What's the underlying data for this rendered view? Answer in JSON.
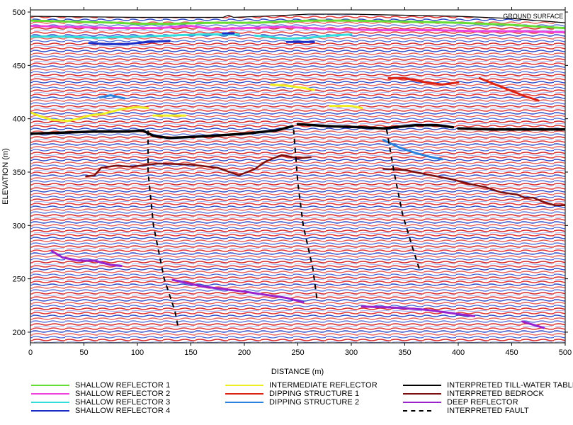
{
  "chart_data": {
    "type": "line",
    "xlabel": "DISTANCE (m)",
    "ylabel": "ELEVATION (m)",
    "xlim": [
      0,
      500
    ],
    "ylim": [
      190,
      502
    ],
    "x_ticks": [
      0,
      50,
      100,
      150,
      200,
      250,
      300,
      350,
      400,
      450,
      500
    ],
    "y_ticks": [
      200,
      250,
      300,
      350,
      400,
      450,
      500
    ],
    "grid": false,
    "legend_position": "bottom",
    "background": "GPR radargram (red/blue/white seismic-style amplitude texture)",
    "annotations": [
      {
        "text": "GROUND SURFACE",
        "x": 470,
        "y": 494
      }
    ],
    "surface": {
      "color": "#000000",
      "points": [
        [
          0,
          496
        ],
        [
          100,
          495
        ],
        [
          180,
          495
        ],
        [
          185,
          497
        ],
        [
          190,
          495
        ],
        [
          240,
          497
        ],
        [
          260,
          498
        ],
        [
          300,
          498
        ],
        [
          350,
          497
        ],
        [
          400,
          496
        ],
        [
          450,
          494
        ],
        [
          500,
          490
        ]
      ]
    },
    "series": [
      {
        "name": "SHALLOW REFLECTOR 1",
        "color": "#66dd33",
        "width": 3,
        "segments": [
          [
            [
              0,
              492
            ],
            [
              40,
              491
            ],
            [
              80,
              490
            ],
            [
              100,
              489
            ],
            [
              130,
              489
            ],
            [
              170,
              490
            ],
            [
              210,
              490
            ],
            [
              260,
              492
            ],
            [
              300,
              492
            ],
            [
              350,
              491
            ],
            [
              400,
              490
            ],
            [
              450,
              488
            ],
            [
              480,
              486
            ],
            [
              500,
              485
            ]
          ]
        ]
      },
      {
        "name": "SHALLOW REFLECTOR 2",
        "color": "#ee44dd",
        "width": 3,
        "segments": [
          [
            [
              0,
              487
            ],
            [
              40,
              486
            ],
            [
              80,
              485
            ],
            [
              120,
              485
            ],
            [
              150,
              487
            ],
            [
              170,
              484
            ],
            [
              200,
              485
            ],
            [
              240,
              486
            ],
            [
              280,
              484
            ],
            [
              330,
              483
            ],
            [
              380,
              483
            ],
            [
              420,
              482
            ],
            [
              460,
              482
            ],
            [
              500,
              481
            ]
          ]
        ]
      },
      {
        "name": "SHALLOW REFLECTOR 3",
        "color": "#33dddd",
        "width": 3,
        "segments": [
          [
            [
              0,
              477
            ],
            [
              30,
              477
            ],
            [
              60,
              476
            ],
            [
              100,
              477
            ],
            [
              130,
              478
            ],
            [
              160,
              479
            ],
            [
              195,
              479
            ]
          ],
          [
            [
              210,
              478
            ],
            [
              240,
              475
            ],
            [
              260,
              476
            ],
            [
              280,
              478
            ],
            [
              300,
              479
            ]
          ]
        ]
      },
      {
        "name": "SHALLOW REFLECTOR 4",
        "color": "#1a2cc8",
        "width": 3,
        "segments": [
          [
            [
              55,
              471
            ],
            [
              70,
              470
            ],
            [
              90,
              470
            ],
            [
              110,
              472
            ],
            [
              130,
              473
            ]
          ],
          [
            [
              180,
              480
            ],
            [
              190,
              480
            ]
          ],
          [
            [
              240,
              472
            ],
            [
              265,
              472
            ]
          ]
        ]
      },
      {
        "name": "INTERMEDIATE REFLECTOR",
        "color": "#eeee22",
        "width": 3,
        "segments": [
          [
            [
              0,
              406
            ],
            [
              10,
              402
            ],
            [
              20,
              399
            ],
            [
              35,
              398
            ],
            [
              45,
              400
            ],
            [
              55,
              403
            ],
            [
              70,
              405
            ],
            [
              85,
              409
            ],
            [
              100,
              411
            ],
            [
              110,
              410
            ]
          ],
          [
            [
              115,
              403
            ],
            [
              145,
              403
            ]
          ],
          [
            [
              225,
              432
            ],
            [
              240,
              431
            ],
            [
              255,
              429
            ],
            [
              265,
              427
            ]
          ],
          [
            [
              280,
              412
            ],
            [
              300,
              412
            ],
            [
              310,
              410
            ]
          ]
        ]
      },
      {
        "name": "DIPPING STRUCTURE 1",
        "color": "#dd2211",
        "width": 3,
        "segments": [
          [
            [
              335,
              438
            ],
            [
              350,
              438
            ],
            [
              370,
              434
            ],
            [
              385,
              432
            ],
            [
              400,
              434
            ]
          ],
          [
            [
              420,
              438
            ],
            [
              440,
              430
            ],
            [
              460,
              422
            ],
            [
              475,
              417
            ]
          ]
        ]
      },
      {
        "name": "DIPPING STRUCTURE 2",
        "color": "#2a82dd",
        "width": 3,
        "segments": [
          [
            [
              65,
              420
            ],
            [
              75,
              422
            ],
            [
              88,
              419
            ]
          ],
          [
            [
              330,
              380
            ],
            [
              345,
              373
            ],
            [
              360,
              368
            ],
            [
              375,
              364
            ],
            [
              385,
              362
            ]
          ]
        ]
      },
      {
        "name": "INTERPRETED TILL-WATER TABLE",
        "color": "#000000",
        "width": 3.5,
        "segments": [
          [
            [
              0,
              386
            ],
            [
              30,
              387
            ],
            [
              60,
              388
            ],
            [
              90,
              388
            ],
            [
              105,
              389
            ],
            [
              115,
              384
            ],
            [
              130,
              382
            ],
            [
              170,
              384
            ],
            [
              200,
              386
            ],
            [
              230,
              389
            ],
            [
              245,
              393
            ]
          ],
          [
            [
              250,
              395
            ],
            [
              280,
              393
            ],
            [
              310,
              392
            ],
            [
              330,
              391
            ],
            [
              340,
              392
            ],
            [
              360,
              394
            ],
            [
              380,
              394
            ],
            [
              395,
              392
            ]
          ],
          [
            [
              400,
              391
            ],
            [
              430,
              390
            ],
            [
              460,
              390
            ],
            [
              500,
              390
            ]
          ]
        ]
      },
      {
        "name": "INTERPRETED BEDROCK",
        "color": "#7a0f0f",
        "width": 2.5,
        "segments": [
          [
            [
              52,
              346
            ],
            [
              60,
              347
            ],
            [
              66,
              354
            ],
            [
              80,
              356
            ],
            [
              95,
              355
            ],
            [
              110,
              357
            ],
            [
              120,
              358
            ],
            [
              150,
              357
            ],
            [
              175,
              354
            ],
            [
              195,
              347
            ],
            [
              210,
              353
            ],
            [
              220,
              360
            ],
            [
              235,
              366
            ],
            [
              250,
              363
            ],
            [
              262,
              364
            ]
          ],
          [
            [
              330,
              353
            ],
            [
              350,
              352
            ],
            [
              365,
              349
            ],
            [
              380,
              346
            ],
            [
              395,
              343
            ],
            [
              410,
              339
            ],
            [
              425,
              336
            ],
            [
              440,
              331
            ],
            [
              455,
              329
            ],
            [
              462,
              326
            ],
            [
              470,
              326
            ],
            [
              480,
              322
            ],
            [
              490,
              319
            ],
            [
              500,
              319
            ]
          ]
        ]
      },
      {
        "name": "DEEP REFLECTOR",
        "color": "#9922cc",
        "width": 3,
        "segments": [
          [
            [
              20,
              276
            ],
            [
              30,
              270
            ],
            [
              45,
              267
            ],
            [
              60,
              267
            ],
            [
              75,
              263
            ],
            [
              85,
              262
            ]
          ],
          [
            [
              133,
              249
            ],
            [
              160,
              243
            ],
            [
              200,
              238
            ],
            [
              240,
              232
            ],
            [
              255,
              228
            ]
          ],
          [
            [
              310,
              224
            ],
            [
              340,
              223
            ],
            [
              370,
              221
            ],
            [
              400,
              217
            ],
            [
              415,
              215
            ]
          ],
          [
            [
              460,
              210
            ],
            [
              470,
              207
            ],
            [
              480,
              204
            ]
          ]
        ]
      },
      {
        "name": "INTERPRETED FAULT",
        "color": "#000000",
        "width": 2,
        "dashed": true,
        "segments": [
          [
            [
              110,
              389
            ],
            [
              110,
              350
            ],
            [
              115,
              300
            ],
            [
              125,
              250
            ],
            [
              135,
              220
            ],
            [
              138,
              205
            ]
          ],
          [
            [
              246,
              390
            ],
            [
              250,
              340
            ],
            [
              255,
              300
            ],
            [
              264,
              260
            ],
            [
              268,
              230
            ]
          ],
          [
            [
              333,
              390
            ],
            [
              340,
              350
            ],
            [
              348,
              310
            ],
            [
              357,
              280
            ],
            [
              364,
              258
            ]
          ]
        ]
      }
    ]
  }
}
